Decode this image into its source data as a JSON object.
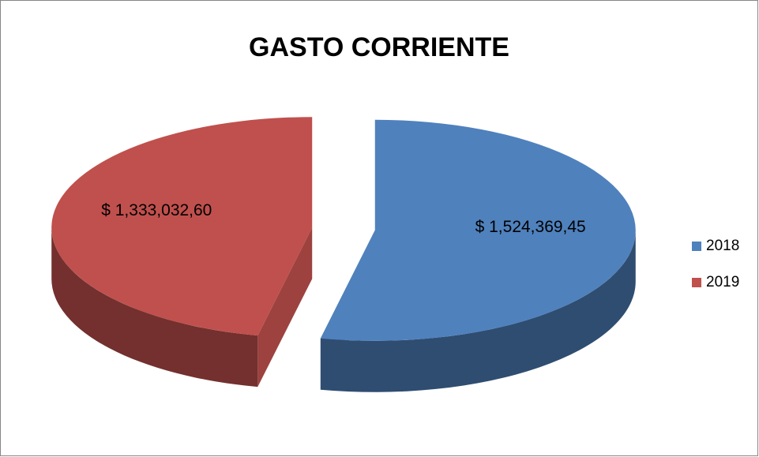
{
  "chart_data": {
    "type": "pie",
    "title": "GASTO CORRIENTE",
    "categories": [
      "2018",
      "2019"
    ],
    "values": [
      1524369.45,
      1333032.6
    ],
    "value_labels": [
      "$ 1,524,369,45",
      "$ 1,333,032,60"
    ],
    "colors": [
      "#4f81bd",
      "#c0504d"
    ],
    "legend": "right",
    "three_d": true,
    "exploded": true
  }
}
